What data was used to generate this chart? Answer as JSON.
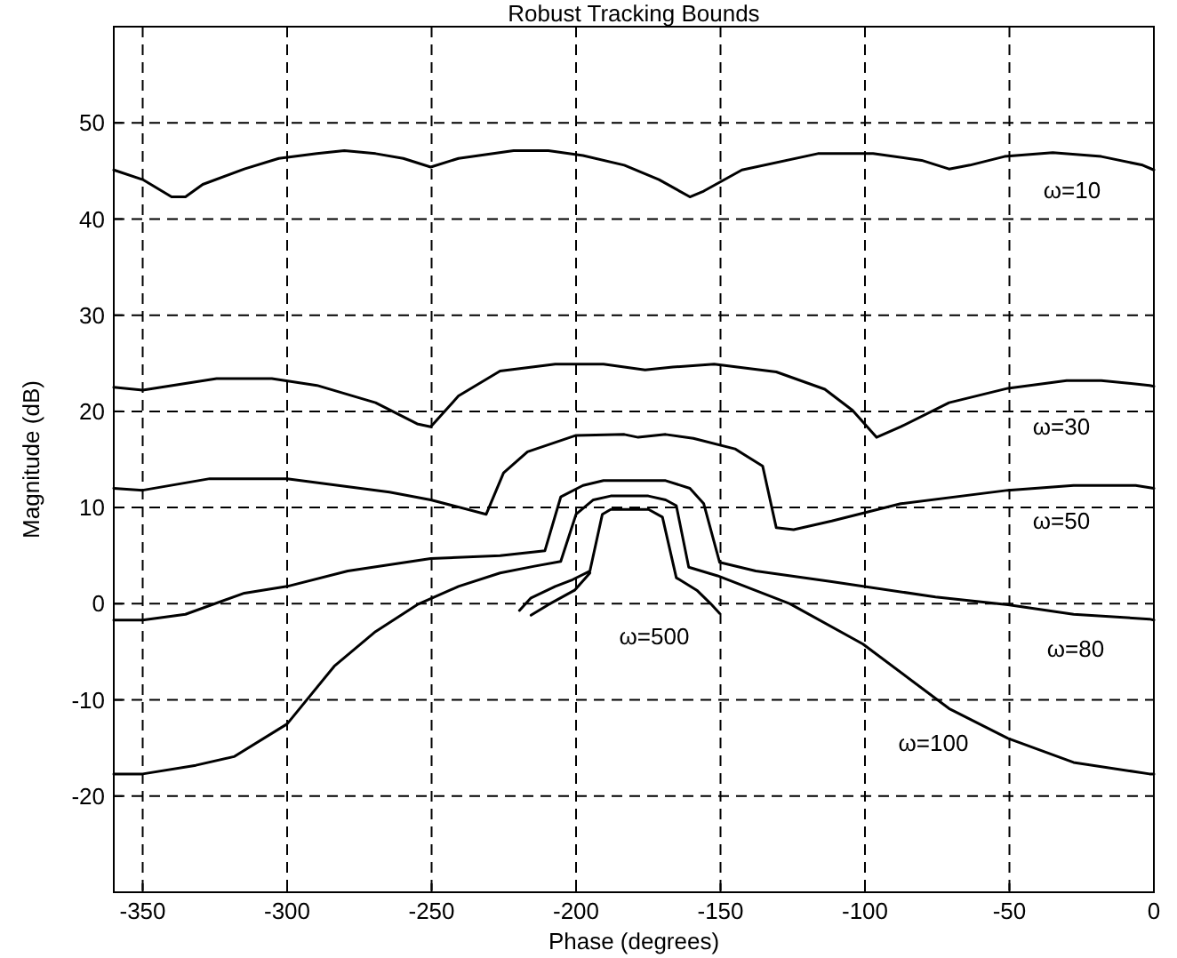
{
  "chart_data": {
    "type": "line",
    "title": "Robust Tracking Bounds",
    "xlabel": "Phase (degrees)",
    "ylabel": "Magnitude (dB)",
    "xlim": [
      -360,
      0
    ],
    "ylim": [
      -30,
      60
    ],
    "xticks": [
      -350,
      -300,
      -250,
      -200,
      -150,
      -100,
      -50,
      0
    ],
    "yticks": [
      -20,
      -10,
      0,
      10,
      20,
      30,
      40,
      50
    ],
    "grid": true,
    "line_style": "solid",
    "marker": "none",
    "series": [
      {
        "name": "ω=10",
        "color": "#000000",
        "x": [
          -360,
          -350,
          -340,
          -335.2,
          -329.2,
          -314.8,
          -302.9,
          -289.7,
          -280.2,
          -269.4,
          -259.8,
          -250.3,
          -240.7,
          -221.6,
          -209.6,
          -197.6,
          -183.3,
          -171.3,
          -160.6,
          -155.8,
          -142.6,
          -116.3,
          -97.2,
          -80.4,
          -70.9,
          -63.7,
          -51.7,
          -35,
          -18.2,
          -3.9,
          0
        ],
        "values": [
          45.1,
          44.1,
          42.3,
          42.3,
          43.6,
          45.2,
          46.3,
          46.8,
          47.1,
          46.8,
          46.3,
          45.4,
          46.3,
          47.1,
          47.1,
          46.6,
          45.6,
          44.1,
          42.3,
          42.9,
          45.1,
          46.8,
          46.8,
          46.1,
          45.2,
          45.6,
          46.5,
          46.9,
          46.5,
          45.6,
          45.1
        ]
      },
      {
        "name": "ω=30",
        "color": "#000000",
        "x": [
          -360,
          -350,
          -324.4,
          -305.3,
          -289.7,
          -269.4,
          -255,
          -250.3,
          -240.7,
          -226.3,
          -207.2,
          -190.5,
          -176.1,
          -166.5,
          -152.2,
          -130.7,
          -113.9,
          -104.3,
          -96,
          -87.6,
          -70.9,
          -50.5,
          -30.2,
          -18.2,
          -1.5,
          0
        ],
        "values": [
          22.5,
          22.2,
          23.4,
          23.4,
          22.7,
          20.9,
          18.7,
          18.4,
          21.6,
          24.2,
          24.9,
          24.9,
          24.3,
          24.6,
          24.9,
          24.1,
          22.3,
          20.1,
          17.3,
          18.4,
          20.9,
          22.4,
          23.2,
          23.2,
          22.7,
          22.6
        ]
      },
      {
        "name": "ω=50",
        "color": "#000000",
        "x": [
          -360,
          -350,
          -326.8,
          -300,
          -264.6,
          -250.3,
          -231.1,
          -225.1,
          -216.8,
          -200,
          -183.3,
          -178.5,
          -169,
          -159.4,
          -145,
          -135.4,
          -130.7,
          -124.7,
          -111.5,
          -87.6,
          -50.5,
          -27.8,
          -6.3,
          0
        ],
        "values": [
          12,
          11.8,
          13,
          13,
          11.6,
          10.8,
          9.3,
          13.6,
          15.8,
          17.5,
          17.6,
          17.3,
          17.6,
          17.2,
          16.1,
          14.3,
          7.9,
          7.7,
          8.6,
          10.4,
          11.8,
          12.3,
          12.3,
          12
        ]
      },
      {
        "name": "ω=80",
        "color": "#000000",
        "x": [
          -360,
          -350,
          -335.2,
          -314.8,
          -300,
          -279,
          -250.3,
          -226.3,
          -210.8,
          -205.3,
          -197.6,
          -190.5,
          -169,
          -160.6,
          -155.8,
          -150.3,
          -137.8,
          -111.5,
          -75.6,
          -50.5,
          -27.8,
          -1.5,
          0
        ],
        "values": [
          -1.7,
          -1.7,
          -1.1,
          1.1,
          1.8,
          3.4,
          4.7,
          5,
          5.5,
          11.1,
          12.3,
          12.8,
          12.8,
          12,
          10.4,
          4.3,
          3.4,
          2.3,
          0.7,
          -0.1,
          -1.1,
          -1.6,
          -1.7
        ]
      },
      {
        "name": "ω=100",
        "color": "#000000",
        "x": [
          -360,
          -350,
          -331.6,
          -318.4,
          -300,
          -283.7,
          -269.4,
          -255,
          -240.7,
          -226.3,
          -214.4,
          -205.3,
          -200,
          -194,
          -188,
          -175,
          -169,
          -165.3,
          -161,
          -151,
          -126,
          -100.7,
          -70.9,
          -50.5,
          -27.8,
          -1.5,
          0
        ],
        "values": [
          -17.7,
          -17.7,
          -16.8,
          -15.9,
          -12.5,
          -6.5,
          -2.9,
          -0.1,
          1.8,
          3.2,
          3.9,
          4.4,
          9.3,
          10.8,
          11.2,
          11.2,
          10.8,
          10.2,
          3.8,
          2.9,
          0,
          -4.2,
          -10.9,
          -14,
          -16.5,
          -17.7,
          -17.7
        ]
      },
      {
        "name": "ω=500",
        "color": "#000000",
        "x": [
          -219.6,
          -215.6,
          -207.2,
          -201.2,
          -195.2,
          -190.9,
          -188,
          -174.9,
          -170.1,
          -165.3,
          -158.2,
          -153.4,
          -150.3
        ],
        "values": [
          -0.7,
          0.6,
          1.8,
          2.5,
          3.4,
          9.3,
          9.8,
          9.8,
          9,
          2.7,
          1.4,
          0,
          -1
        ]
      },
      {
        "color": "#000000",
        "x": [
          -215.6,
          -209.6,
          -200.5,
          -195.2
        ],
        "values": [
          -1.2,
          -0.1,
          1.4,
          3.2
        ]
      }
    ]
  }
}
